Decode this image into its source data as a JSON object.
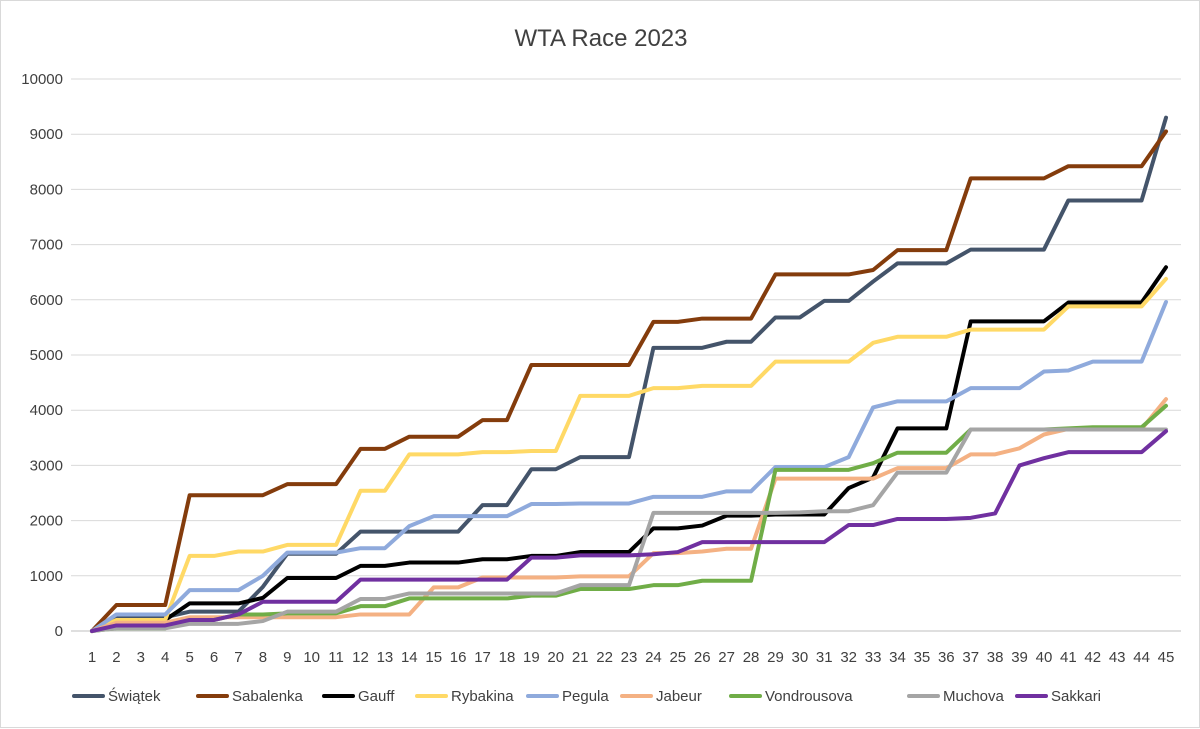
{
  "chart_data": {
    "type": "line",
    "title": "WTA Race 2023",
    "xlabel": "",
    "ylabel": "",
    "ylim": [
      0,
      10000
    ],
    "yticks": [
      0,
      1000,
      2000,
      3000,
      4000,
      5000,
      6000,
      7000,
      8000,
      9000,
      10000
    ],
    "grid": true,
    "legend_position": "bottom",
    "x": [
      1,
      2,
      3,
      4,
      5,
      6,
      7,
      8,
      9,
      10,
      11,
      12,
      13,
      14,
      15,
      16,
      17,
      18,
      19,
      20,
      21,
      22,
      23,
      24,
      25,
      26,
      27,
      28,
      29,
      30,
      31,
      32,
      33,
      34,
      35,
      36,
      37,
      38,
      39,
      40,
      41,
      42,
      43,
      44,
      45
    ],
    "series": [
      {
        "name": "Świątek",
        "color": "#44546a",
        "values": [
          0,
          250,
          250,
          250,
          350,
          350,
          350,
          800,
          1400,
          1400,
          1400,
          1800,
          1800,
          1800,
          1800,
          1800,
          2280,
          2280,
          2930,
          2930,
          3150,
          3150,
          3150,
          5130,
          5130,
          5130,
          5240,
          5240,
          5680,
          5680,
          5980,
          5980,
          6330,
          6660,
          6660,
          6660,
          6910,
          6910,
          6910,
          6910,
          7800,
          7800,
          7800,
          7800,
          9300
        ]
      },
      {
        "name": "Sabalenka",
        "color": "#843c0c",
        "values": [
          0,
          470,
          470,
          470,
          2460,
          2460,
          2460,
          2460,
          2660,
          2660,
          2660,
          3300,
          3300,
          3520,
          3520,
          3520,
          3820,
          3820,
          4820,
          4820,
          4820,
          4820,
          4820,
          5600,
          5600,
          5660,
          5660,
          5660,
          6460,
          6460,
          6460,
          6460,
          6540,
          6900,
          6900,
          6900,
          8200,
          8200,
          8200,
          8200,
          8420,
          8420,
          8420,
          8420,
          9050
        ]
      },
      {
        "name": "Gauff",
        "color": "#000000",
        "values": [
          0,
          200,
          200,
          200,
          500,
          500,
          500,
          600,
          960,
          960,
          960,
          1180,
          1180,
          1240,
          1240,
          1240,
          1300,
          1300,
          1360,
          1360,
          1430,
          1430,
          1430,
          1860,
          1860,
          1910,
          2090,
          2090,
          2110,
          2110,
          2110,
          2590,
          2780,
          3670,
          3670,
          3670,
          5610,
          5610,
          5610,
          5610,
          5950,
          5950,
          5950,
          5950,
          6590
        ]
      },
      {
        "name": "Rybakina",
        "color": "#ffd966",
        "values": [
          0,
          200,
          200,
          200,
          1360,
          1360,
          1440,
          1440,
          1560,
          1560,
          1560,
          2540,
          2540,
          3200,
          3200,
          3200,
          3240,
          3240,
          3260,
          3260,
          4260,
          4260,
          4260,
          4400,
          4400,
          4440,
          4440,
          4440,
          4880,
          4880,
          4880,
          4880,
          5220,
          5330,
          5330,
          5330,
          5460,
          5460,
          5460,
          5460,
          5880,
          5880,
          5880,
          5880,
          6380
        ]
      },
      {
        "name": "Pegula",
        "color": "#8faadc",
        "values": [
          0,
          300,
          300,
          300,
          740,
          740,
          740,
          1000,
          1420,
          1420,
          1420,
          1500,
          1500,
          1900,
          2080,
          2080,
          2080,
          2080,
          2300,
          2300,
          2310,
          2310,
          2310,
          2430,
          2430,
          2430,
          2530,
          2530,
          2970,
          2970,
          2970,
          3150,
          4050,
          4160,
          4160,
          4160,
          4400,
          4400,
          4400,
          4700,
          4720,
          4880,
          4880,
          4880,
          5960
        ]
      },
      {
        "name": "Jabeur",
        "color": "#f4b183",
        "values": [
          0,
          150,
          150,
          150,
          250,
          250,
          250,
          250,
          250,
          250,
          250,
          300,
          300,
          300,
          790,
          790,
          970,
          970,
          970,
          970,
          990,
          990,
          990,
          1410,
          1410,
          1440,
          1490,
          1490,
          2760,
          2760,
          2760,
          2760,
          2760,
          2950,
          2950,
          2950,
          3200,
          3200,
          3310,
          3560,
          3660,
          3660,
          3660,
          3660,
          4200
        ]
      },
      {
        "name": "Vondrousova",
        "color": "#70ad47",
        "values": [
          0,
          50,
          50,
          50,
          200,
          200,
          300,
          300,
          320,
          320,
          320,
          450,
          450,
          590,
          590,
          590,
          590,
          590,
          640,
          640,
          760,
          760,
          760,
          830,
          830,
          910,
          910,
          910,
          2920,
          2920,
          2920,
          2920,
          3040,
          3230,
          3230,
          3230,
          3650,
          3650,
          3650,
          3650,
          3670,
          3690,
          3690,
          3690,
          4080
        ]
      },
      {
        "name": "Muchova",
        "color": "#a5a5a5",
        "values": [
          0,
          50,
          50,
          50,
          130,
          130,
          130,
          180,
          350,
          350,
          350,
          580,
          580,
          680,
          680,
          680,
          680,
          680,
          680,
          680,
          830,
          830,
          830,
          2140,
          2140,
          2140,
          2140,
          2140,
          2140,
          2150,
          2170,
          2170,
          2280,
          2870,
          2870,
          2870,
          3650,
          3650,
          3650,
          3650,
          3650,
          3650,
          3650,
          3650,
          3650
        ]
      },
      {
        "name": "Sakkari",
        "color": "#7030a0",
        "values": [
          0,
          100,
          100,
          100,
          200,
          200,
          300,
          530,
          530,
          530,
          530,
          930,
          930,
          930,
          930,
          930,
          930,
          930,
          1330,
          1330,
          1370,
          1370,
          1370,
          1390,
          1430,
          1610,
          1610,
          1610,
          1610,
          1610,
          1610,
          1920,
          1920,
          2030,
          2030,
          2030,
          2050,
          2130,
          3000,
          3130,
          3240,
          3240,
          3240,
          3240,
          3620
        ]
      }
    ]
  }
}
